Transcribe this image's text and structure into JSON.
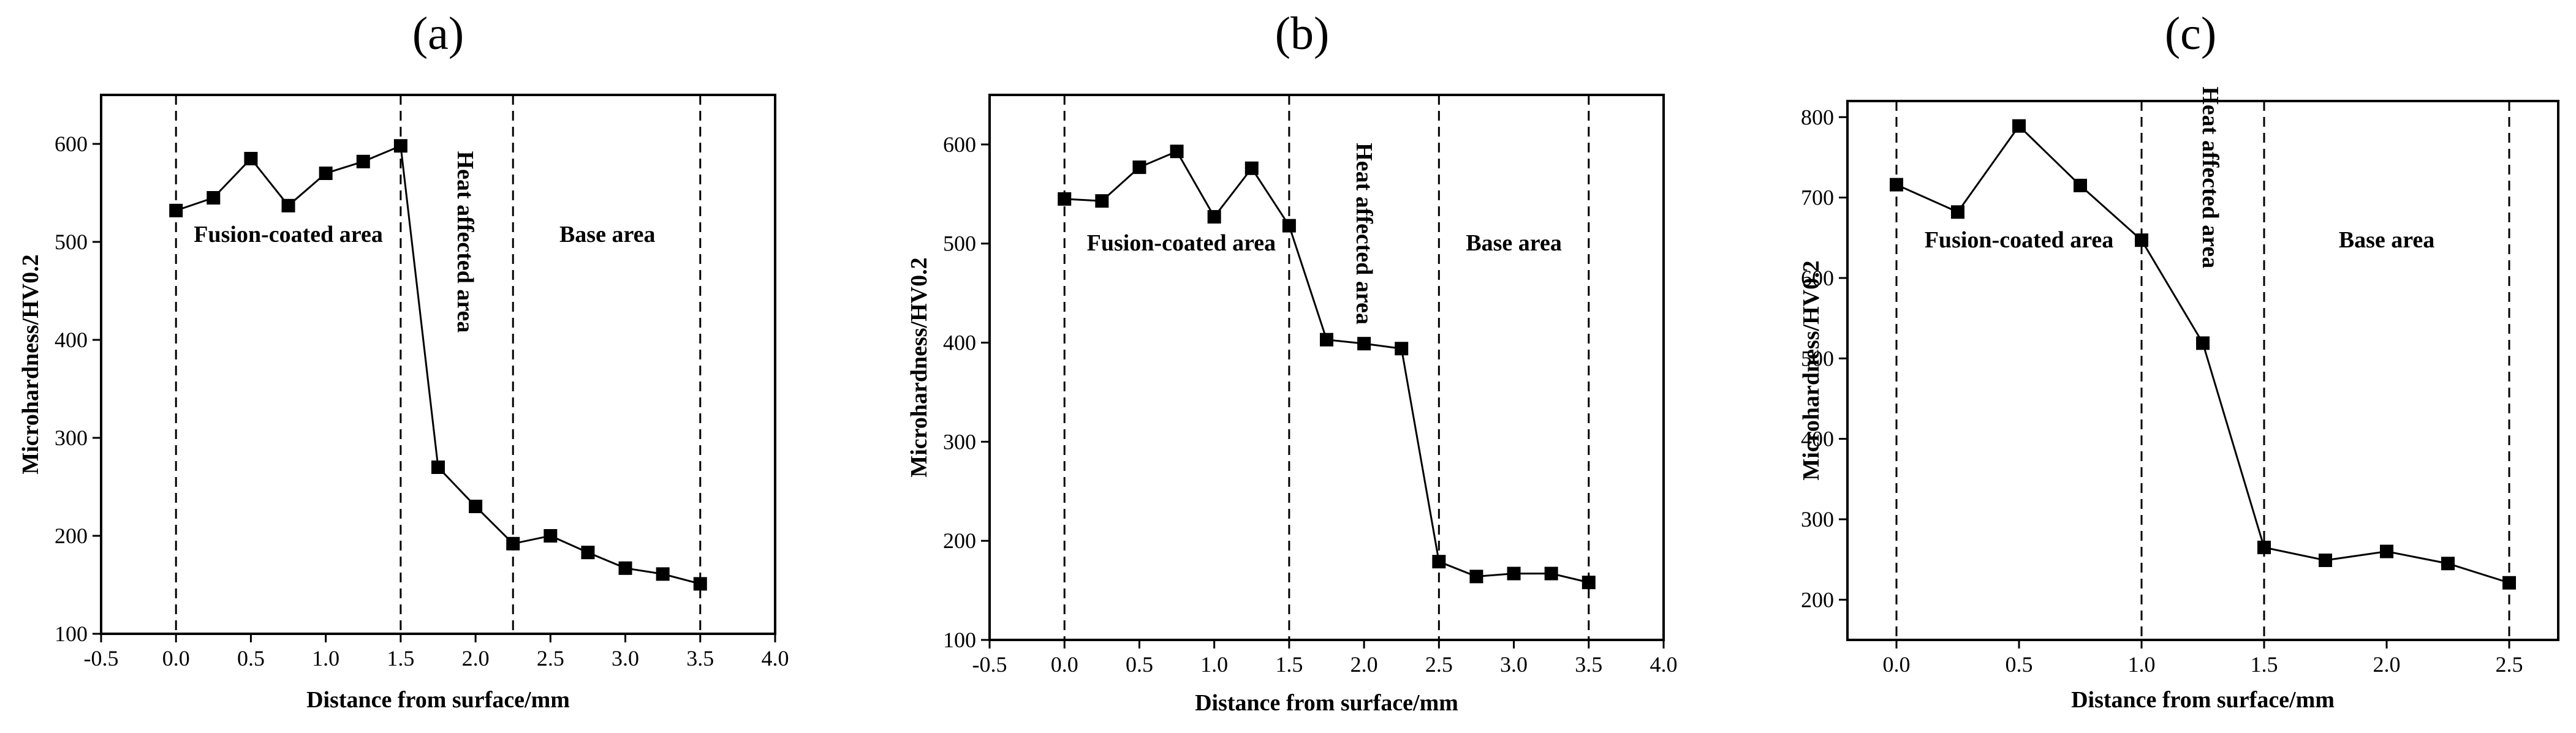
{
  "chart_data": [
    {
      "panel": "(a)",
      "type": "line",
      "xlabel": "Distance from surface/mm",
      "ylabel": "Microhardness/HV0.2",
      "xlim": [
        -0.5,
        4.0
      ],
      "ylim": [
        100,
        650
      ],
      "xticks": [
        -0.5,
        0.0,
        0.5,
        1.0,
        1.5,
        2.0,
        2.5,
        3.0,
        3.5,
        4.0
      ],
      "xtick_labels": [
        "-0.5",
        "0.0",
        "0.5",
        "1.0",
        "1.5",
        "2.0",
        "2.5",
        "3.0",
        "3.5",
        "4.0"
      ],
      "yticks": [
        100,
        200,
        300,
        400,
        500,
        600
      ],
      "ytick_labels": [
        "100",
        "200",
        "300",
        "400",
        "500",
        "600"
      ],
      "x": [
        0.0,
        0.25,
        0.5,
        0.75,
        1.0,
        1.25,
        1.5,
        1.75,
        2.0,
        2.25,
        2.5,
        2.75,
        3.0,
        3.25,
        3.5
      ],
      "y": [
        532,
        545,
        585,
        537,
        570,
        582,
        598,
        270,
        230,
        192,
        200,
        183,
        167,
        161,
        151
      ],
      "dividers": [
        0.0,
        1.5,
        2.25,
        3.5
      ],
      "regions": [
        {
          "label": "Fusion-coated area",
          "x": 0.75,
          "y": 500,
          "orientation": "horizontal"
        },
        {
          "label": "Heat affected area",
          "x": 1.88,
          "y": 500,
          "orientation": "vertical"
        },
        {
          "label": "Base area",
          "x": 2.88,
          "y": 500,
          "orientation": "horizontal"
        }
      ]
    },
    {
      "panel": "(b)",
      "type": "line",
      "xlabel": "Distance from surface/mm",
      "ylabel": "Microhardness/HV0.2",
      "xlim": [
        -0.5,
        4.0
      ],
      "ylim": [
        100,
        650
      ],
      "xticks": [
        -0.5,
        0.0,
        0.5,
        1.0,
        1.5,
        2.0,
        2.5,
        3.0,
        3.5,
        4.0
      ],
      "xtick_labels": [
        "-0.5",
        "0.0",
        "0.5",
        "1.0",
        "1.5",
        "2.0",
        "2.5",
        "3.0",
        "3.5",
        "4.0"
      ],
      "yticks": [
        100,
        200,
        300,
        400,
        500,
        600
      ],
      "ytick_labels": [
        "100",
        "200",
        "300",
        "400",
        "500",
        "600"
      ],
      "x": [
        0.0,
        0.25,
        0.5,
        0.75,
        1.0,
        1.25,
        1.5,
        1.75,
        2.0,
        2.25,
        2.5,
        2.75,
        3.0,
        3.25,
        3.5
      ],
      "y": [
        545,
        543,
        577,
        593,
        527,
        576,
        518,
        403,
        399,
        394,
        179,
        164,
        167,
        167,
        158
      ],
      "dividers": [
        0.0,
        1.5,
        2.5,
        3.5
      ],
      "regions": [
        {
          "label": "Fusion-coated area",
          "x": 0.78,
          "y": 493,
          "orientation": "horizontal"
        },
        {
          "label": "Heat affected area",
          "x": 1.95,
          "y": 510,
          "orientation": "vertical"
        },
        {
          "label": "Base area",
          "x": 3.0,
          "y": 493,
          "orientation": "horizontal"
        }
      ]
    },
    {
      "panel": "(c)",
      "type": "line",
      "xlabel": "Distance from surface/mm",
      "ylabel": "Microhardness/HV0.2",
      "xlim": [
        -0.2,
        2.7
      ],
      "ylim": [
        150,
        820
      ],
      "xticks": [
        0.0,
        0.5,
        1.0,
        1.5,
        2.0,
        2.5
      ],
      "xtick_labels": [
        "0.0",
        "0.5",
        "1.0",
        "1.5",
        "2.0",
        "2.5"
      ],
      "yticks": [
        200,
        300,
        400,
        500,
        600,
        700,
        800
      ],
      "ytick_labels": [
        "200",
        "300",
        "400",
        "500",
        "600",
        "700",
        "800"
      ],
      "x": [
        0.0,
        0.25,
        0.5,
        0.75,
        1.0,
        1.25,
        1.5,
        1.75,
        2.0,
        2.25,
        2.5
      ],
      "y": [
        716,
        682,
        789,
        715,
        647,
        519,
        265,
        249,
        260,
        245,
        221
      ],
      "dividers": [
        0.0,
        1.0,
        1.5,
        2.5
      ],
      "regions": [
        {
          "label": "Fusion-coated area",
          "x": 0.5,
          "y": 638,
          "orientation": "horizontal"
        },
        {
          "label": "Heat affected area",
          "x": 1.25,
          "y": 725,
          "orientation": "vertical"
        },
        {
          "label": "Base area",
          "x": 2.0,
          "y": 638,
          "orientation": "horizontal"
        }
      ]
    }
  ]
}
